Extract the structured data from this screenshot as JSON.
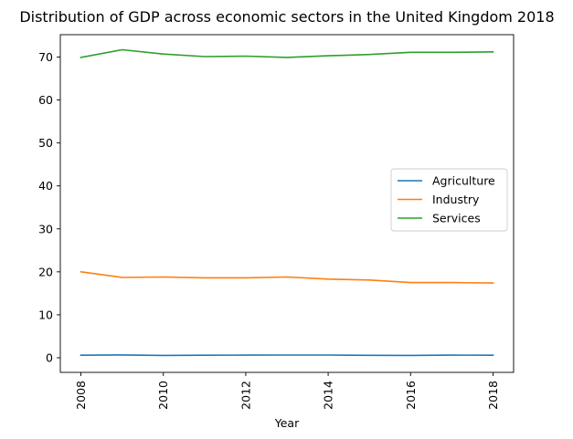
{
  "chart_data": {
    "type": "line",
    "title": "Distribution of GDP across economic sectors in the United Kingdom 2018",
    "xlabel": "Year",
    "ylabel": "",
    "x": [
      2008,
      2009,
      2010,
      2011,
      2012,
      2013,
      2014,
      2015,
      2016,
      2017,
      2018
    ],
    "xticks": [
      2008,
      2010,
      2012,
      2014,
      2016,
      2018
    ],
    "yticks": [
      0,
      10,
      20,
      30,
      40,
      50,
      60,
      70
    ],
    "xlim": [
      2007.5,
      2018.5
    ],
    "ylim": [
      -3.4,
      75.2
    ],
    "grid": false,
    "legend_position": "center-right",
    "series": [
      {
        "name": "Agriculture",
        "color": "#1f77b4",
        "values": [
          0.6,
          0.65,
          0.55,
          0.6,
          0.62,
          0.63,
          0.63,
          0.58,
          0.55,
          0.62,
          0.6
        ]
      },
      {
        "name": "Industry",
        "color": "#ff7f0e",
        "values": [
          20.0,
          18.7,
          18.8,
          18.6,
          18.6,
          18.8,
          18.3,
          18.1,
          17.5,
          17.5,
          17.4
        ]
      },
      {
        "name": "Services",
        "color": "#2ca02c",
        "values": [
          69.9,
          71.7,
          70.7,
          70.1,
          70.2,
          69.9,
          70.3,
          70.6,
          71.1,
          71.1,
          71.2
        ]
      }
    ]
  }
}
